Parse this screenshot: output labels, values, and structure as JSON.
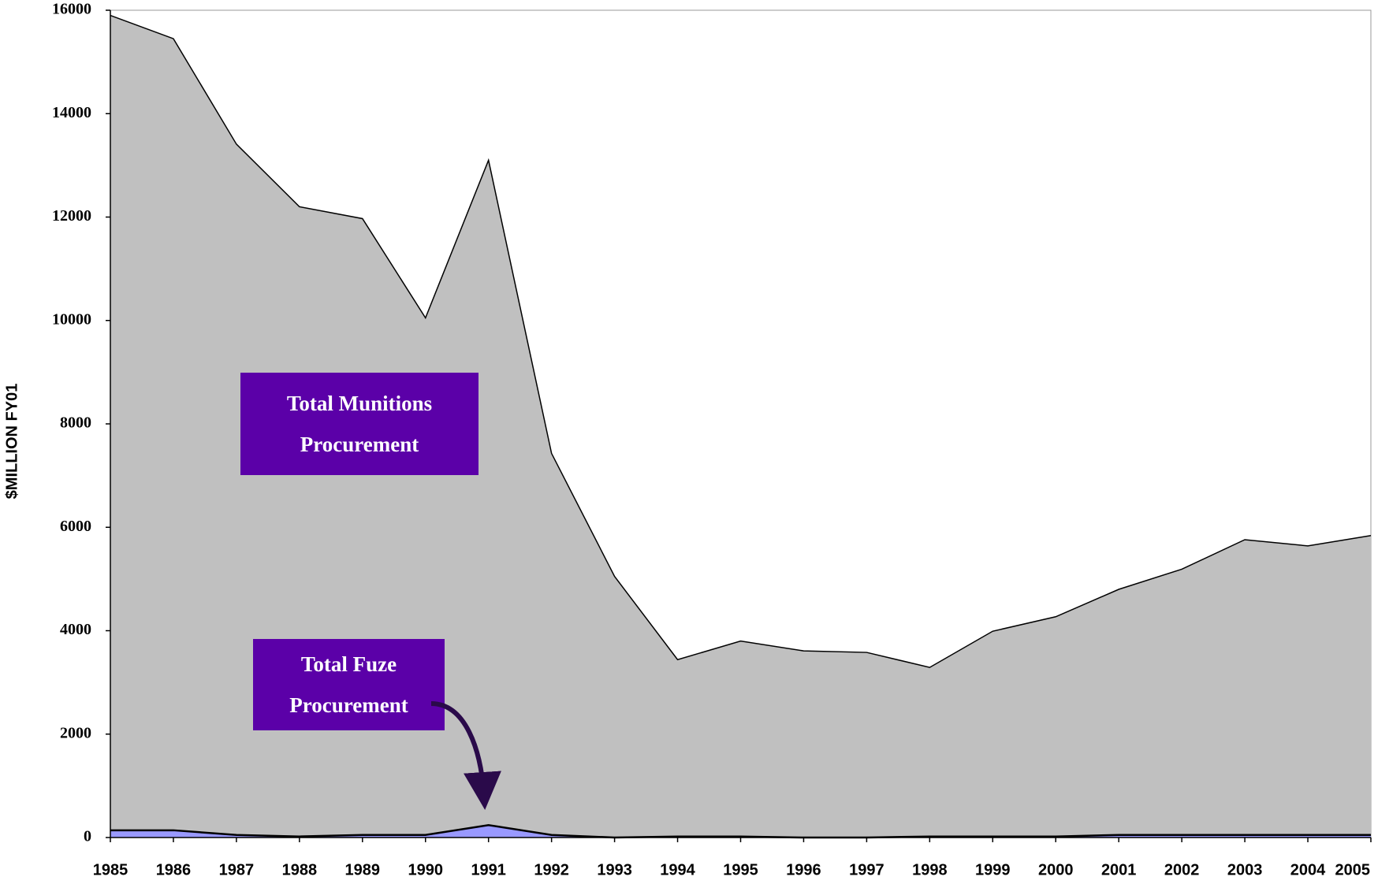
{
  "chart_data": {
    "type": "area",
    "y_label": "$MILLION FY01",
    "categories": [
      "1985",
      "1986",
      "1987",
      "1988",
      "1989",
      "1990",
      "1991",
      "1992",
      "1993",
      "1994",
      "1995",
      "1996",
      "1997",
      "1998",
      "1999",
      "2000",
      "2001",
      "2002",
      "2003",
      "2004",
      "2005"
    ],
    "series": [
      {
        "name": "Total Munitions Procurement",
        "color": "#c0c0c0",
        "values": [
          15900,
          15450,
          13410,
          12200,
          11970,
          10050,
          13100,
          7430,
          5050,
          3440,
          3800,
          3610,
          3580,
          3290,
          3990,
          4270,
          4800,
          5190,
          5760,
          5640,
          5840
        ]
      },
      {
        "name": "Total Fuze Procurement",
        "color": "#9999ff",
        "values": [
          140,
          140,
          50,
          20,
          50,
          50,
          240,
          50,
          0,
          20,
          20,
          0,
          0,
          20,
          20,
          20,
          50,
          50,
          50,
          50,
          50
        ]
      }
    ],
    "ylim": [
      0,
      16000
    ],
    "yticks": [
      0,
      2000,
      4000,
      6000,
      8000,
      10000,
      12000,
      14000,
      16000
    ]
  }
}
